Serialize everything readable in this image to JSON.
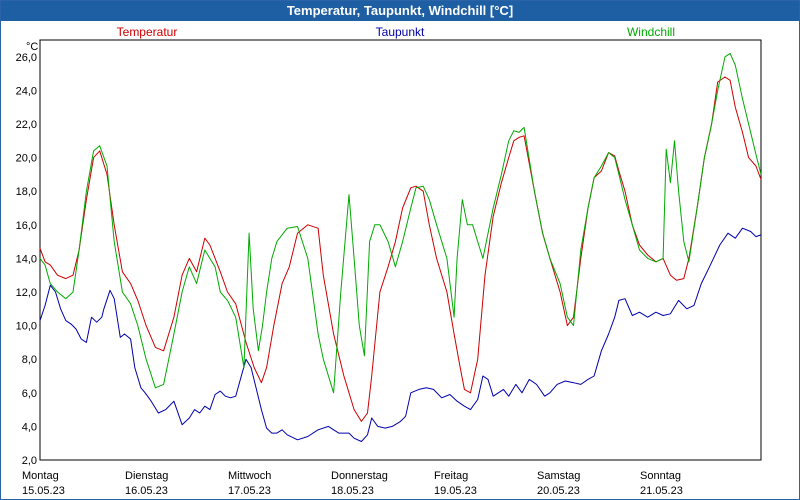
{
  "window": {
    "title": "Temperatur, Taupunkt, Windchill [°C]"
  },
  "colors": {
    "temperatur": "#cc0000",
    "taupunkt": "#0000aa",
    "windchill": "#00aa00",
    "title_bg": "#1e5fa3"
  },
  "chart_data": {
    "type": "line",
    "title": "Temperatur, Taupunkt, Windchill [°C]",
    "ylabel": "°C",
    "ylim": [
      2,
      27
    ],
    "xlim": [
      0,
      7
    ],
    "yticks": [
      "2,0",
      "4,0",
      "6,0",
      "8,0",
      "10,0",
      "12,0",
      "14,0",
      "16,0",
      "18,0",
      "20,0",
      "22,0",
      "24,0",
      "26,0"
    ],
    "xticks": [
      {
        "day": "Montag",
        "date": "15.05.23"
      },
      {
        "day": "Dienstag",
        "date": "16.05.23"
      },
      {
        "day": "Mittwoch",
        "date": "17.05.23"
      },
      {
        "day": "Donnerstag",
        "date": "18.05.23"
      },
      {
        "day": "Freitag",
        "date": "19.05.23"
      },
      {
        "day": "Samstag",
        "date": "20.05.23"
      },
      {
        "day": "Sonntag",
        "date": "21.05.23"
      }
    ],
    "grid": true,
    "series": [
      {
        "name": "Temperatur",
        "color": "#cc0000",
        "x": [
          0,
          0.05,
          0.1,
          0.17,
          0.25,
          0.32,
          0.38,
          0.45,
          0.52,
          0.58,
          0.65,
          0.72,
          0.8,
          0.88,
          0.95,
          1.03,
          1.12,
          1.2,
          1.3,
          1.38,
          1.45,
          1.52,
          1.6,
          1.65,
          1.7,
          1.75,
          1.82,
          1.9,
          2.0,
          2.08,
          2.15,
          2.2,
          2.27,
          2.35,
          2.42,
          2.5,
          2.6,
          2.7,
          2.75,
          2.85,
          2.95,
          3.05,
          3.12,
          3.18,
          3.22,
          3.3,
          3.38,
          3.45,
          3.52,
          3.6,
          3.65,
          3.72,
          3.78,
          3.85,
          3.95,
          4.02,
          4.08,
          4.12,
          4.18,
          4.25,
          4.32,
          4.4,
          4.48,
          4.55,
          4.6,
          4.65,
          4.7,
          4.8,
          4.88,
          4.95,
          5.05,
          5.12,
          5.18,
          5.25,
          5.32,
          5.38,
          5.45,
          5.52,
          5.58,
          5.62,
          5.68,
          5.75,
          5.82,
          5.9,
          5.98,
          6.05,
          6.12,
          6.18,
          6.25,
          6.3,
          6.38,
          6.45,
          6.52,
          6.58,
          6.65,
          6.7,
          6.75,
          6.82,
          6.88,
          6.95,
          7.0
        ],
        "y": [
          14.6,
          13.8,
          13.6,
          13.0,
          12.8,
          13.0,
          14.5,
          17.5,
          20.0,
          20.4,
          19.0,
          16.0,
          13.2,
          12.5,
          11.5,
          10.0,
          8.7,
          8.5,
          10.5,
          13.0,
          14.0,
          13.2,
          15.2,
          14.8,
          14.0,
          13.2,
          12.0,
          11.3,
          9.0,
          7.5,
          6.6,
          7.5,
          10.0,
          12.5,
          13.5,
          15.5,
          16.0,
          15.8,
          13.0,
          9.5,
          7.0,
          5.0,
          4.3,
          4.8,
          7.0,
          12.0,
          13.5,
          15.0,
          17.0,
          18.2,
          18.3,
          18.0,
          16.0,
          14.0,
          12.0,
          9.5,
          7.5,
          6.2,
          6.0,
          8.0,
          13.0,
          16.5,
          18.5,
          20.0,
          21.0,
          21.2,
          21.3,
          18.0,
          15.5,
          14.0,
          12.0,
          10.0,
          10.5,
          14.0,
          17.0,
          18.8,
          19.2,
          20.3,
          20.1,
          19.2,
          18.0,
          16.0,
          14.8,
          14.2,
          13.8,
          14.0,
          13.0,
          12.7,
          12.8,
          14.0,
          17.0,
          20.0,
          22.0,
          24.5,
          24.8,
          24.6,
          23.0,
          21.5,
          20.0,
          19.5,
          18.7
        ]
      },
      {
        "name": "Taupunkt",
        "color": "#0000aa",
        "x": [
          0,
          0.05,
          0.1,
          0.15,
          0.2,
          0.25,
          0.3,
          0.35,
          0.4,
          0.45,
          0.5,
          0.55,
          0.6,
          0.62,
          0.68,
          0.72,
          0.78,
          0.82,
          0.88,
          0.92,
          0.98,
          1.02,
          1.08,
          1.15,
          1.22,
          1.3,
          1.38,
          1.45,
          1.5,
          1.55,
          1.6,
          1.65,
          1.7,
          1.75,
          1.8,
          1.85,
          1.9,
          2.0,
          2.05,
          2.15,
          2.2,
          2.25,
          2.3,
          2.35,
          2.4,
          2.5,
          2.6,
          2.7,
          2.8,
          2.9,
          3.0,
          3.05,
          3.12,
          3.18,
          3.22,
          3.28,
          3.35,
          3.42,
          3.5,
          3.55,
          3.6,
          3.68,
          3.75,
          3.82,
          3.9,
          3.98,
          4.05,
          4.12,
          4.18,
          4.25,
          4.3,
          4.35,
          4.4,
          4.45,
          4.5,
          4.55,
          4.62,
          4.68,
          4.75,
          4.82,
          4.9,
          4.95,
          5.02,
          5.1,
          5.18,
          5.25,
          5.32,
          5.38,
          5.45,
          5.52,
          5.58,
          5.62,
          5.68,
          5.75,
          5.82,
          5.9,
          5.98,
          6.05,
          6.12,
          6.2,
          6.28,
          6.35,
          6.42,
          6.5,
          6.6,
          6.68,
          6.75,
          6.82,
          6.9,
          6.95,
          7.0
        ],
        "y": [
          10.3,
          11.2,
          12.4,
          12.0,
          11.0,
          10.3,
          10.1,
          9.8,
          9.2,
          9.0,
          10.5,
          10.2,
          10.5,
          11.0,
          12.1,
          11.6,
          9.3,
          9.5,
          9.2,
          7.5,
          6.3,
          6.0,
          5.5,
          4.8,
          5.0,
          5.5,
          4.1,
          4.5,
          5.0,
          4.8,
          5.2,
          5.0,
          5.9,
          6.1,
          5.8,
          5.7,
          5.8,
          8.0,
          7.5,
          5.0,
          3.9,
          3.6,
          3.6,
          3.8,
          3.5,
          3.2,
          3.4,
          3.8,
          4.0,
          3.6,
          3.6,
          3.3,
          3.1,
          3.5,
          4.5,
          4.0,
          3.9,
          4.0,
          4.3,
          4.6,
          6.0,
          6.2,
          6.3,
          6.2,
          5.7,
          5.9,
          5.5,
          5.2,
          5.0,
          5.6,
          7.0,
          6.8,
          5.8,
          6.0,
          6.2,
          5.8,
          6.5,
          6.0,
          6.8,
          6.5,
          5.8,
          6.0,
          6.5,
          6.7,
          6.6,
          6.5,
          6.8,
          7.0,
          8.5,
          9.5,
          10.5,
          11.5,
          11.6,
          10.6,
          10.8,
          10.5,
          10.8,
          10.6,
          10.7,
          11.5,
          11.0,
          11.2,
          12.5,
          13.5,
          14.8,
          15.5,
          15.2,
          15.8,
          15.6,
          15.3,
          15.4
        ]
      },
      {
        "name": "Windchill",
        "color": "#00aa00",
        "x": [
          0,
          0.05,
          0.1,
          0.17,
          0.25,
          0.32,
          0.38,
          0.45,
          0.52,
          0.58,
          0.65,
          0.72,
          0.8,
          0.88,
          0.95,
          1.03,
          1.12,
          1.2,
          1.3,
          1.38,
          1.45,
          1.52,
          1.6,
          1.65,
          1.7,
          1.75,
          1.82,
          1.9,
          1.98,
          2.03,
          2.07,
          2.12,
          2.16,
          2.2,
          2.25,
          2.3,
          2.4,
          2.5,
          2.6,
          2.7,
          2.75,
          2.85,
          2.92,
          3.0,
          3.05,
          3.1,
          3.15,
          3.2,
          3.25,
          3.3,
          3.38,
          3.45,
          3.52,
          3.6,
          3.65,
          3.72,
          3.78,
          3.85,
          3.95,
          4.02,
          4.05,
          4.1,
          4.15,
          4.2,
          4.25,
          4.3,
          4.4,
          4.48,
          4.55,
          4.6,
          4.65,
          4.7,
          4.8,
          4.88,
          4.95,
          5.05,
          5.12,
          5.18,
          5.25,
          5.32,
          5.38,
          5.45,
          5.52,
          5.58,
          5.62,
          5.68,
          5.75,
          5.82,
          5.9,
          5.98,
          6.05,
          6.08,
          6.12,
          6.16,
          6.2,
          6.25,
          6.3,
          6.38,
          6.45,
          6.52,
          6.58,
          6.65,
          6.7,
          6.75,
          6.82,
          6.88,
          6.95,
          7.0
        ],
        "y": [
          14.0,
          13.6,
          12.5,
          12.0,
          11.6,
          12.0,
          14.5,
          18.0,
          20.4,
          20.7,
          19.5,
          15.0,
          12.0,
          11.3,
          10.0,
          8.0,
          6.3,
          6.5,
          9.5,
          12.0,
          13.5,
          12.5,
          14.5,
          14.0,
          13.5,
          12.0,
          11.5,
          10.5,
          7.5,
          15.5,
          11.0,
          8.5,
          10.0,
          12.0,
          14.0,
          15.0,
          15.8,
          15.9,
          14.0,
          9.5,
          8.0,
          6.0,
          12.0,
          17.8,
          14.0,
          10.0,
          8.2,
          15.0,
          16.0,
          16.0,
          15.0,
          13.5,
          15.0,
          17.0,
          18.2,
          18.3,
          17.5,
          16.0,
          14.0,
          10.5,
          14.0,
          17.5,
          16.0,
          16.0,
          15.0,
          14.0,
          17.0,
          19.0,
          21.0,
          21.6,
          21.5,
          21.8,
          18.0,
          15.5,
          14.0,
          12.5,
          10.5,
          10.0,
          14.5,
          17.0,
          18.8,
          19.5,
          20.3,
          20.0,
          19.0,
          17.5,
          16.0,
          14.5,
          14.0,
          13.8,
          14.0,
          20.5,
          18.5,
          21.0,
          18.0,
          15.0,
          13.8,
          17.0,
          20.0,
          22.0,
          24.0,
          26.0,
          26.2,
          25.5,
          23.5,
          22.0,
          20.2,
          19.0
        ]
      }
    ]
  }
}
